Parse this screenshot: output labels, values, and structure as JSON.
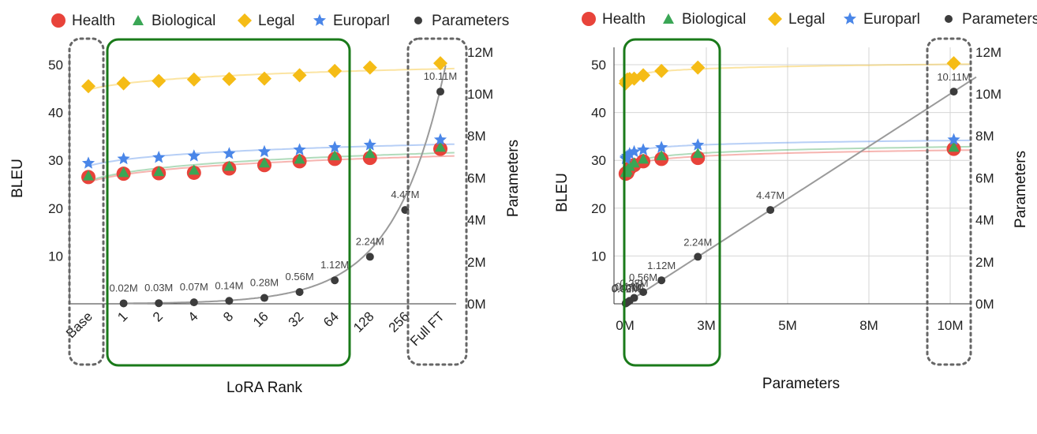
{
  "colors": {
    "Health": "#e8433a",
    "Biological": "#3aa655",
    "Legal": "#f5bc16",
    "Europarl": "#4a86e8",
    "Parameters": "#3c3c3c",
    "box_green": "#1a7a1a",
    "box_gray": "#666666"
  },
  "chart_data": [
    {
      "type": "scatter",
      "title": "",
      "xlabel": "LoRA Rank",
      "ylabel": "BLEU",
      "ylabel_right": "Parameters",
      "categories": [
        "Base",
        "1",
        "2",
        "4",
        "8",
        "16",
        "32",
        "64",
        "128",
        "256",
        "Full FT"
      ],
      "ylim": [
        0,
        55
      ],
      "yticks": [
        "10",
        "20",
        "30",
        "40",
        "50"
      ],
      "ylim_right": [
        0,
        12
      ],
      "yticks_right": [
        "0M",
        "2M",
        "4M",
        "6M",
        "8M",
        "10M",
        "12M"
      ],
      "legend": [
        "Health",
        "Biological",
        "Legal",
        "Europarl",
        "Parameters"
      ],
      "legend_position": "top",
      "series": [
        {
          "name": "Health",
          "values": [
            26.5,
            27.2,
            27.3,
            27.4,
            28.3,
            29.0,
            29.8,
            30.3,
            30.5,
            null,
            32.4
          ]
        },
        {
          "name": "Biological",
          "values": [
            26.8,
            27.5,
            27.7,
            28.0,
            28.8,
            29.5,
            30.3,
            31.0,
            31.5,
            null,
            32.8
          ]
        },
        {
          "name": "Legal",
          "values": [
            45.5,
            46.1,
            46.6,
            46.9,
            47.0,
            47.1,
            47.8,
            48.7,
            49.4,
            null,
            50.3
          ]
        },
        {
          "name": "Europarl",
          "values": [
            29.4,
            30.3,
            30.6,
            30.9,
            31.4,
            31.8,
            32.2,
            32.7,
            33.2,
            null,
            34.3
          ]
        },
        {
          "name": "Parameters",
          "values": [
            null,
            0.02,
            0.03,
            0.07,
            0.14,
            0.28,
            0.56,
            1.12,
            2.24,
            4.47,
            10.11
          ],
          "labels": [
            null,
            "0.02M",
            "0.03M",
            "0.07M",
            "0.14M",
            "0.28M",
            "0.56M",
            "1.12M",
            "2.24M",
            "4.47M",
            "10.11M"
          ]
        }
      ],
      "highlight_groups": [
        {
          "style": "dashed-gray",
          "from": "Base",
          "to": "Base"
        },
        {
          "style": "solid-green",
          "from": "1",
          "to": "64"
        },
        {
          "style": "dashed-gray",
          "from": "Full FT",
          "to": "Full FT"
        }
      ]
    },
    {
      "type": "scatter",
      "title": "",
      "xlabel": "Parameters",
      "ylabel": "BLEU",
      "ylabel_right": "Parameters",
      "xlim": [
        0,
        10.8
      ],
      "xticks": [
        {
          "value": 0,
          "label": "0M"
        },
        {
          "value": 2.5,
          "label": "3M"
        },
        {
          "value": 5,
          "label": "5M"
        },
        {
          "value": 7.5,
          "label": "8M"
        },
        {
          "value": 10,
          "label": "10M"
        }
      ],
      "ylim": [
        0,
        55
      ],
      "yticks": [
        "10",
        "20",
        "30",
        "40",
        "50"
      ],
      "ylim_right": [
        0,
        12
      ],
      "yticks_right": [
        "0M",
        "2M",
        "4M",
        "6M",
        "8M",
        "10M",
        "12M"
      ],
      "legend": [
        "Health",
        "Biological",
        "Legal",
        "Europarl",
        "Parameters"
      ],
      "legend_position": "top",
      "x": [
        0.02,
        0.03,
        0.07,
        0.14,
        0.28,
        0.56,
        1.12,
        2.24,
        4.47,
        10.11
      ],
      "series": [
        {
          "name": "Health",
          "values": [
            27.2,
            27.3,
            27.4,
            28.3,
            29.0,
            29.8,
            30.3,
            30.5,
            null,
            32.4
          ]
        },
        {
          "name": "Biological",
          "values": [
            27.5,
            27.7,
            28.0,
            28.8,
            29.5,
            30.3,
            31.0,
            31.5,
            null,
            32.8
          ]
        },
        {
          "name": "Legal",
          "values": [
            46.1,
            46.6,
            46.9,
            47.0,
            47.1,
            47.8,
            48.7,
            49.4,
            null,
            50.3
          ]
        },
        {
          "name": "Europarl",
          "values": [
            30.3,
            30.6,
            30.9,
            31.4,
            31.8,
            32.2,
            32.7,
            33.2,
            null,
            34.3
          ]
        },
        {
          "name": "Parameters",
          "values": [
            0.02,
            0.03,
            0.07,
            0.14,
            0.28,
            0.56,
            1.12,
            2.24,
            4.47,
            10.11
          ],
          "labels": [
            "0.02M",
            "0.03M",
            "0.07M",
            "0.14M",
            "0.28M",
            "0.56M",
            "1.12M",
            "2.24M",
            "4.47M",
            "10.11M"
          ]
        }
      ],
      "highlight_groups": [
        {
          "style": "solid-green",
          "from": 0,
          "to": 2.5
        },
        {
          "style": "dashed-gray",
          "from": 10.11,
          "to": 10.11
        }
      ]
    }
  ]
}
